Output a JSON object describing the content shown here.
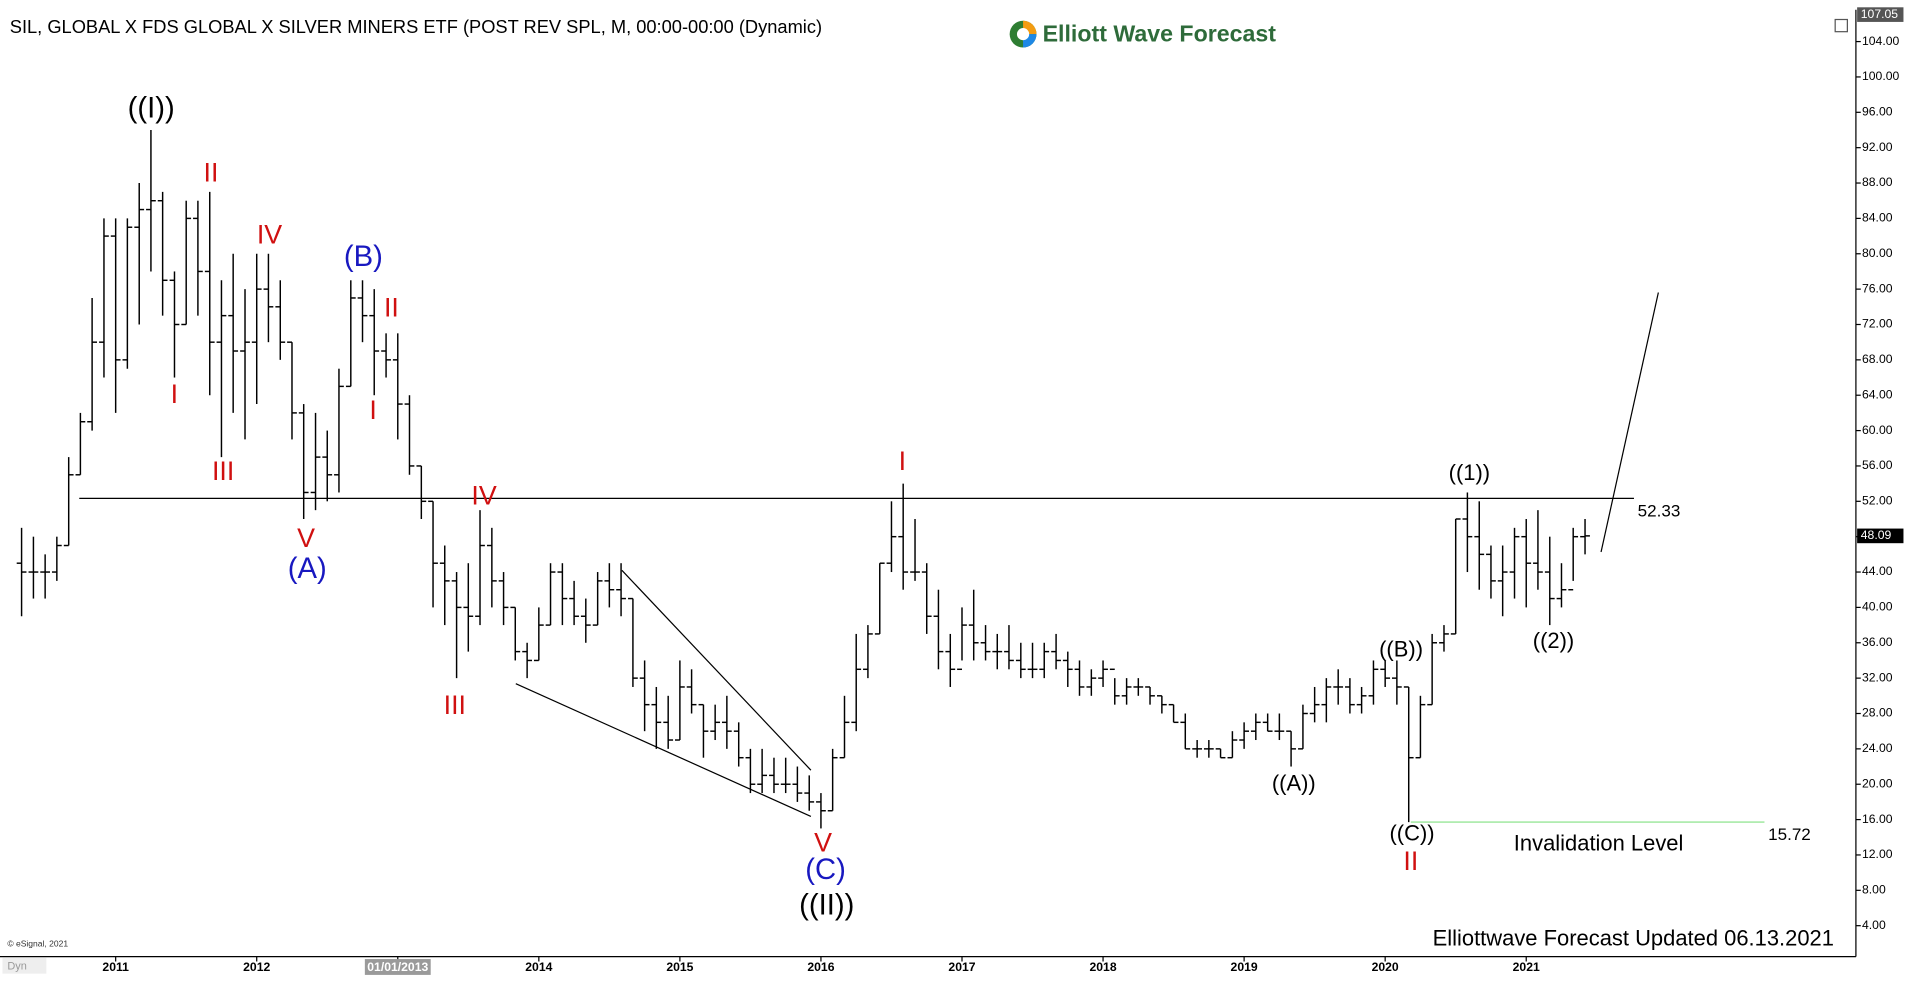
{
  "chart_data": {
    "type": "ohlc",
    "title": "SIL, GLOBAL X FDS GLOBAL X SILVER MINERS ETF (POST REV SPL, M, 00:00-00:00 (Dynamic)",
    "logo": "Elliott Wave Forecast",
    "footer": "Elliottwave Forecast Updated 06.13.2021",
    "copyright": "© eSignal, 2021",
    "mode_label": "Dyn",
    "color": "#000000",
    "x": [
      2010.333,
      2010.417,
      2010.5,
      2010.583,
      2010.667,
      2010.75,
      2010.833,
      2010.917,
      2011,
      2011.083,
      2011.167,
      2011.25,
      2011.333,
      2011.417,
      2011.5,
      2011.583,
      2011.667,
      2011.75,
      2011.833,
      2011.917,
      2012,
      2012.083,
      2012.167,
      2012.25,
      2012.333,
      2012.417,
      2012.5,
      2012.583,
      2012.667,
      2012.75,
      2012.833,
      2012.917,
      2013,
      2013.083,
      2013.167,
      2013.25,
      2013.333,
      2013.417,
      2013.5,
      2013.583,
      2013.667,
      2013.75,
      2013.833,
      2013.917,
      2014,
      2014.083,
      2014.167,
      2014.25,
      2014.333,
      2014.417,
      2014.5,
      2014.583,
      2014.667,
      2014.75,
      2014.833,
      2014.917,
      2015,
      2015.083,
      2015.167,
      2015.25,
      2015.333,
      2015.417,
      2015.5,
      2015.583,
      2015.667,
      2015.75,
      2015.833,
      2015.917,
      2016,
      2016.083,
      2016.167,
      2016.25,
      2016.333,
      2016.417,
      2016.5,
      2016.583,
      2016.667,
      2016.75,
      2016.833,
      2016.917,
      2017,
      2017.083,
      2017.167,
      2017.25,
      2017.333,
      2017.417,
      2017.5,
      2017.583,
      2017.667,
      2017.75,
      2017.833,
      2017.917,
      2018,
      2018.083,
      2018.167,
      2018.25,
      2018.333,
      2018.417,
      2018.5,
      2018.583,
      2018.667,
      2018.75,
      2018.833,
      2018.917,
      2019,
      2019.083,
      2019.167,
      2019.25,
      2019.333,
      2019.417,
      2019.5,
      2019.583,
      2019.667,
      2019.75,
      2019.833,
      2019.917,
      2020,
      2020.083,
      2020.167,
      2020.25,
      2020.333,
      2020.417,
      2020.5,
      2020.583,
      2020.667,
      2020.75,
      2020.833,
      2020.917,
      2021,
      2021.083,
      2021.167,
      2021.25,
      2021.333,
      2021.417
    ],
    "open": [
      45,
      44,
      44,
      44,
      47,
      55,
      61,
      70,
      82,
      68,
      83,
      85,
      86,
      77,
      72,
      84,
      78,
      70,
      73,
      69,
      70,
      76,
      74,
      70,
      62,
      53,
      57,
      55,
      65,
      75,
      73,
      69,
      68,
      63,
      56,
      52,
      45,
      43,
      40,
      39,
      47,
      43,
      40,
      35,
      34,
      38,
      44,
      41,
      39,
      38,
      43,
      42,
      41,
      32,
      29,
      27,
      25,
      31,
      29,
      26,
      27,
      26,
      23,
      20,
      21,
      20,
      20,
      19,
      18,
      17,
      23,
      27,
      33,
      37,
      45,
      48,
      44,
      44,
      39,
      35,
      33,
      38,
      36,
      35,
      35,
      34,
      33,
      33,
      35,
      34,
      33,
      31,
      32,
      33,
      30,
      31,
      31,
      30,
      29,
      27,
      24,
      24,
      24,
      23,
      25,
      26,
      27,
      26,
      26,
      24,
      28,
      29,
      31,
      31,
      29,
      30,
      33,
      32,
      31,
      23,
      29,
      36,
      37,
      50,
      48,
      46,
      43,
      44,
      48,
      45,
      44,
      41,
      42,
      48
    ],
    "high": [
      49,
      48,
      46,
      48,
      57,
      62,
      75,
      84,
      84,
      84,
      88,
      94,
      87,
      78,
      86,
      86,
      87,
      77,
      80,
      76,
      80,
      80,
      77,
      70,
      63,
      62,
      60,
      67,
      77,
      77,
      76,
      71,
      71,
      64,
      56,
      52,
      47,
      44,
      45,
      51,
      49,
      44,
      40,
      36,
      40,
      45,
      45,
      43,
      41,
      44,
      45,
      45,
      41,
      34,
      31,
      30,
      34,
      33,
      29,
      29,
      30,
      27,
      24,
      24,
      23,
      23,
      22,
      21,
      19,
      24,
      30,
      37,
      38,
      45,
      52,
      54,
      50,
      45,
      42,
      37,
      40,
      42,
      38,
      37,
      38,
      36,
      36,
      36,
      37,
      35,
      34,
      33,
      34,
      32,
      32,
      32,
      31,
      30,
      29,
      28,
      25,
      25,
      24,
      26,
      27,
      28,
      28,
      28,
      26,
      29,
      31,
      32,
      33,
      32,
      31,
      34,
      34,
      34,
      31,
      30,
      37,
      38,
      50,
      53,
      52,
      47,
      47,
      49,
      50,
      51,
      48,
      45,
      49,
      50
    ],
    "low": [
      39,
      41,
      41,
      43,
      47,
      55,
      60,
      66,
      62,
      67,
      72,
      78,
      73,
      66,
      72,
      73,
      64,
      57,
      62,
      59,
      63,
      70,
      68,
      59,
      50,
      51,
      52,
      53,
      65,
      70,
      64,
      66,
      59,
      55,
      50,
      40,
      38,
      32,
      35,
      38,
      40,
      38,
      34,
      32,
      34,
      38,
      38,
      38,
      36,
      38,
      40,
      39,
      31,
      26,
      24,
      24,
      25,
      28,
      23,
      25,
      24,
      22,
      19,
      19,
      19,
      19,
      18,
      17,
      15,
      17,
      23,
      26,
      32,
      37,
      44,
      42,
      43,
      37,
      33,
      31,
      34,
      34,
      34,
      33,
      33,
      32,
      32,
      32,
      33,
      31,
      30,
      30,
      31,
      29,
      29,
      30,
      29,
      28,
      27,
      24,
      23,
      23,
      23,
      23,
      24,
      25,
      26,
      25,
      22,
      24,
      27,
      27,
      29,
      28,
      28,
      29,
      31,
      29,
      15.72,
      23,
      29,
      35,
      37,
      44,
      42,
      41,
      39,
      41,
      40,
      42,
      38,
      40,
      43,
      46
    ],
    "close": [
      44,
      44,
      44,
      47,
      55,
      61,
      70,
      82,
      68,
      83,
      85,
      86,
      77,
      72,
      84,
      78,
      70,
      73,
      69,
      70,
      76,
      74,
      70,
      62,
      53,
      57,
      55,
      65,
      75,
      73,
      69,
      68,
      63,
      56,
      52,
      45,
      43,
      40,
      39,
      47,
      43,
      40,
      35,
      34,
      38,
      44,
      41,
      39,
      38,
      43,
      42,
      41,
      32,
      29,
      27,
      25,
      31,
      29,
      26,
      27,
      26,
      23,
      20,
      21,
      20,
      20,
      19,
      18,
      17,
      23,
      27,
      33,
      37,
      45,
      48,
      44,
      44,
      39,
      35,
      33,
      38,
      36,
      35,
      35,
      34,
      33,
      33,
      35,
      34,
      33,
      31,
      32,
      33,
      30,
      31,
      31,
      30,
      29,
      27,
      24,
      24,
      24,
      23,
      25,
      26,
      27,
      26,
      26,
      24,
      28,
      29,
      31,
      31,
      29,
      30,
      33,
      32,
      31,
      23,
      29,
      36,
      37,
      50,
      48,
      46,
      43,
      44,
      48,
      45,
      44,
      41,
      42,
      48,
      48.09
    ],
    "xlim": [
      2010.18,
      2023.32
    ],
    "ylim": [
      0.5,
      107.6
    ],
    "xticks": [
      2011,
      2012,
      {
        "value": 2013,
        "label": "01/01/2013"
      },
      2014,
      2015,
      2016,
      2017,
      2018,
      2019,
      2020,
      2021
    ],
    "yticks": [
      {
        "value": 4,
        "label": "4.00"
      },
      {
        "value": 8,
        "label": "8.00"
      },
      {
        "value": 12,
        "label": "12.00"
      },
      {
        "value": 16,
        "label": "16.00"
      },
      {
        "value": 20,
        "label": "20.00"
      },
      {
        "value": 24,
        "label": "24.00"
      },
      {
        "value": 28,
        "label": "28.00"
      },
      {
        "value": 32,
        "label": "32.00"
      },
      {
        "value": 36,
        "label": "36.00"
      },
      {
        "value": 40,
        "label": "40.00"
      },
      {
        "value": 44,
        "label": "44.00"
      },
      {
        "value": 48,
        "label": "48.00"
      },
      {
        "value": 52,
        "label": "52.00"
      },
      {
        "value": 56,
        "label": "56.00"
      },
      {
        "value": 60,
        "label": "60.00"
      },
      {
        "value": 64,
        "label": "64.00"
      },
      {
        "value": 68,
        "label": "68.00"
      },
      {
        "value": 72,
        "label": "72.00"
      },
      {
        "value": 76,
        "label": "76.00"
      },
      {
        "value": 80,
        "label": "80.00"
      },
      {
        "value": 84,
        "label": "84.00"
      },
      {
        "value": 88,
        "label": "88.00"
      },
      {
        "value": 92,
        "label": "92.00"
      },
      {
        "value": 96,
        "label": "96.00"
      },
      {
        "value": 100,
        "label": "100.00"
      },
      {
        "value": 104,
        "label": "104.00"
      }
    ],
    "price_markers": [
      {
        "value": 107.05,
        "label": "107.05",
        "color": "#555555"
      },
      {
        "value": 48.09,
        "label": "48.09",
        "color": "#000000"
      }
    ],
    "reference_lines": [
      {
        "value": 52.33,
        "label": "52.33",
        "color": "#000000"
      },
      {
        "value": 15.72,
        "label": "15.72",
        "color": "#80e080"
      }
    ],
    "annotations": [
      {
        "text": "((I))",
        "color": "#000000"
      },
      {
        "text": "II",
        "color": "#d01010"
      },
      {
        "text": "I",
        "color": "#d01010"
      },
      {
        "text": "III",
        "color": "#d01010"
      },
      {
        "text": "IV",
        "color": "#d01010"
      },
      {
        "text": "(B)",
        "color": "#1818c0"
      },
      {
        "text": "II",
        "color": "#d01010"
      },
      {
        "text": "I",
        "color": "#d01010"
      },
      {
        "text": "V",
        "color": "#d01010"
      },
      {
        "text": "(A)",
        "color": "#1818c0"
      },
      {
        "text": "IV",
        "color": "#d01010"
      },
      {
        "text": "III",
        "color": "#d01010"
      },
      {
        "text": "I",
        "color": "#d01010"
      },
      {
        "text": "V",
        "color": "#d01010"
      },
      {
        "text": "(C)",
        "color": "#1818c0"
      },
      {
        "text": "((II))",
        "color": "#000000"
      },
      {
        "text": "((A))",
        "color": "#000000"
      },
      {
        "text": "((B))",
        "color": "#000000"
      },
      {
        "text": "((C))",
        "color": "#000000"
      },
      {
        "text": "II",
        "color": "#d01010"
      },
      {
        "text": "((1))",
        "color": "#000000"
      },
      {
        "text": "((2))",
        "color": "#000000"
      },
      {
        "text": "Invalidation Level",
        "color": "#000000"
      }
    ]
  }
}
